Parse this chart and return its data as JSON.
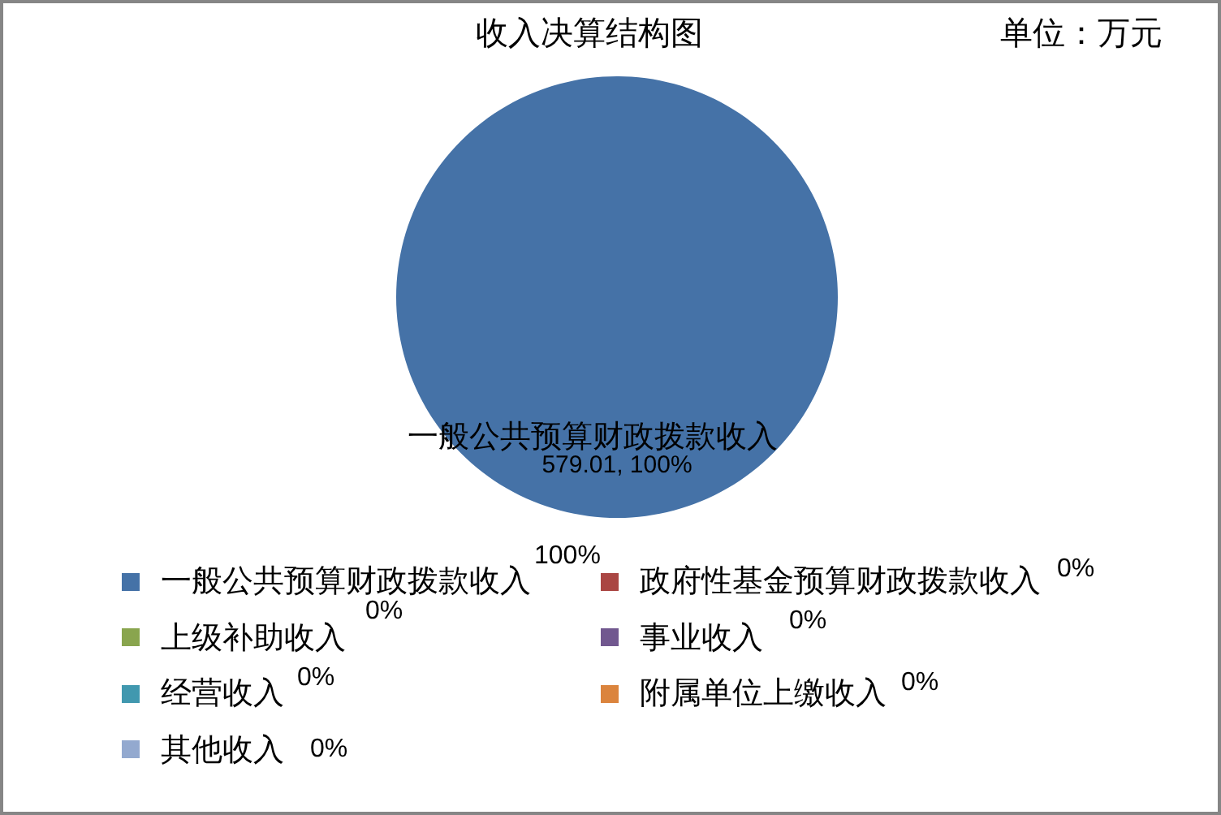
{
  "chart_data": {
    "type": "pie",
    "title": "收入决算结构图",
    "subtitle": "单位：万元",
    "categories": [
      "一般公共预算财政拨款收入",
      "政府性基金预算财政拨款收入",
      "上级补助收入",
      "事业收入",
      "经营收入",
      "附属单位上缴收入",
      "其他收入"
    ],
    "values": [
      579.01,
      0,
      0,
      0,
      0,
      0,
      0
    ],
    "colors": [
      "#4572a7",
      "#aa4643",
      "#89a54e",
      "#71588f",
      "#4198af",
      "#db843d",
      "#93a9cf"
    ],
    "value_labels": [
      "579.01, 100%",
      null,
      null,
      null,
      null,
      null,
      null
    ],
    "annotations": [
      "100%",
      "0%",
      "0%",
      "0%",
      "0%",
      "0%",
      "0%"
    ],
    "legend": "bottom"
  }
}
